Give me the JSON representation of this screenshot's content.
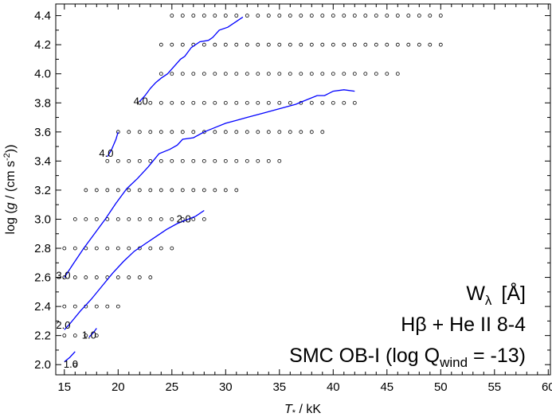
{
  "chart_data": {
    "type": "line",
    "xlabel_parts": {
      "italic": "T",
      "subscript": "*",
      "rest": " / kK"
    },
    "ylabel_parts": {
      "pre": "log (",
      "italic": "g",
      "mid": " / (cm s",
      "sup": "-2",
      "post": "))"
    },
    "xlim": [
      14.2,
      60.2
    ],
    "ylim": [
      1.93,
      4.48
    ],
    "x_ticks": [
      15,
      20,
      25,
      30,
      35,
      40,
      45,
      50,
      55,
      60
    ],
    "y_ticks": [
      2.0,
      2.2,
      2.4,
      2.6,
      2.8,
      3.0,
      3.2,
      3.4,
      3.6,
      3.8,
      4.0,
      4.2,
      4.4
    ],
    "x_tick_labels": [
      "15",
      "20",
      "25",
      "30",
      "35",
      "40",
      "45",
      "50",
      "55",
      "60"
    ],
    "y_tick_labels": [
      "2.0",
      "2.2",
      "2.4",
      "2.6",
      "2.8",
      "3.0",
      "3.2",
      "3.4",
      "3.6",
      "3.8",
      "4.0",
      "4.2",
      "4.4"
    ],
    "grid": false,
    "model_grid": [
      {
        "logg": 2.0,
        "x_start": 16.0,
        "x_end": 16.0
      },
      {
        "logg": 2.2,
        "x_start": 15.0,
        "x_end": 18.0
      },
      {
        "logg": 2.4,
        "x_start": 15.0,
        "x_end": 20.0
      },
      {
        "logg": 2.6,
        "x_start": 15.0,
        "x_end": 23.0
      },
      {
        "logg": 2.8,
        "x_start": 15.0,
        "x_end": 25.0
      },
      {
        "logg": 3.0,
        "x_start": 16.0,
        "x_end": 28.0
      },
      {
        "logg": 3.2,
        "x_start": 17.0,
        "x_end": 31.0
      },
      {
        "logg": 3.4,
        "x_start": 19.0,
        "x_end": 35.0
      },
      {
        "logg": 3.6,
        "x_start": 20.0,
        "x_end": 39.0
      },
      {
        "logg": 3.8,
        "x_start": 22.0,
        "x_end": 42.0
      },
      {
        "logg": 4.0,
        "x_start": 24.0,
        "x_end": 46.0
      },
      {
        "logg": 4.2,
        "x_start": 24.0,
        "x_end": 50.0
      },
      {
        "logg": 4.4,
        "x_start": 25.0,
        "x_end": 50.0
      }
    ],
    "series": [
      {
        "label": "1.0",
        "points": [
          [
            15.0,
            2.02
          ],
          [
            15.5,
            2.05
          ],
          [
            16.0,
            2.09
          ]
        ]
      },
      {
        "label": "1.0",
        "points": [
          [
            17.3,
            2.19
          ],
          [
            17.7,
            2.22
          ],
          [
            18.0,
            2.25
          ]
        ]
      },
      {
        "label": "2.0",
        "points": [
          [
            15.0,
            2.24
          ],
          [
            15.5,
            2.28
          ],
          [
            16.5,
            2.37
          ],
          [
            17.5,
            2.45
          ],
          [
            18.5,
            2.54
          ],
          [
            19.5,
            2.63
          ],
          [
            20.5,
            2.71
          ],
          [
            21.5,
            2.78
          ],
          [
            22.5,
            2.83
          ],
          [
            23.5,
            2.88
          ],
          [
            24.5,
            2.93
          ],
          [
            25.5,
            2.97
          ],
          [
            26.5,
            3.0
          ],
          [
            27.2,
            3.02
          ],
          [
            28.0,
            3.06
          ]
        ]
      },
      {
        "label": "3.0",
        "points": [
          [
            15.0,
            2.6
          ],
          [
            15.8,
            2.69
          ],
          [
            16.8,
            2.8
          ],
          [
            17.8,
            2.9
          ],
          [
            18.8,
            3.0
          ],
          [
            19.8,
            3.11
          ],
          [
            20.8,
            3.21
          ],
          [
            21.8,
            3.28
          ],
          [
            22.8,
            3.36
          ],
          [
            23.8,
            3.45
          ],
          [
            24.8,
            3.48
          ],
          [
            25.5,
            3.51
          ],
          [
            26.0,
            3.55
          ],
          [
            27.0,
            3.56
          ],
          [
            28.0,
            3.6
          ],
          [
            29.0,
            3.63
          ],
          [
            30.0,
            3.66
          ],
          [
            31.0,
            3.68
          ],
          [
            32.0,
            3.7
          ],
          [
            33.5,
            3.73
          ],
          [
            35.0,
            3.76
          ],
          [
            36.5,
            3.79
          ],
          [
            37.5,
            3.82
          ],
          [
            38.5,
            3.85
          ],
          [
            39.2,
            3.85
          ],
          [
            40.0,
            3.88
          ],
          [
            41.0,
            3.89
          ],
          [
            42.0,
            3.88
          ]
        ]
      },
      {
        "label": "4.0",
        "points": [
          [
            19.0,
            3.43
          ],
          [
            19.4,
            3.48
          ],
          [
            19.8,
            3.55
          ],
          [
            20.0,
            3.6
          ]
        ]
      },
      {
        "label": "4.0",
        "points": [
          [
            22.0,
            3.81
          ],
          [
            22.5,
            3.85
          ],
          [
            23.0,
            3.9
          ],
          [
            23.5,
            3.94
          ],
          [
            24.0,
            3.97
          ],
          [
            24.6,
            4.0
          ],
          [
            25.2,
            4.05
          ],
          [
            25.8,
            4.1
          ],
          [
            26.2,
            4.12
          ],
          [
            26.8,
            4.18
          ],
          [
            27.6,
            4.22
          ],
          [
            28.4,
            4.23
          ],
          [
            28.8,
            4.25
          ],
          [
            29.4,
            4.3
          ],
          [
            30.2,
            4.32
          ],
          [
            31.0,
            4.36
          ],
          [
            31.6,
            4.39
          ]
        ]
      }
    ],
    "contour_labels": [
      {
        "text": "1.0",
        "x": 15.6,
        "y": 2.0
      },
      {
        "text": "1.0",
        "x": 17.3,
        "y": 2.2
      },
      {
        "text": "2.0",
        "x": 14.9,
        "y": 2.27
      },
      {
        "text": "3.0",
        "x": 14.9,
        "y": 2.61
      },
      {
        "text": "2.0",
        "x": 26.1,
        "y": 3.0
      },
      {
        "text": "4.0",
        "x": 18.9,
        "y": 3.45
      },
      {
        "text": "4.0",
        "x": 22.1,
        "y": 3.81
      }
    ],
    "annotation": {
      "line1_main": "W",
      "line1_sub": "λ",
      "line1_unit": "[Å]",
      "line2": "Hβ + He II 8-4",
      "line3_pre": "SMC OB-I (log Q",
      "line3_sub": "wind",
      "line3_post": " = -13)"
    },
    "colors": {
      "contour": "#0000ff",
      "markers": "#000000",
      "axes": "#000000"
    }
  }
}
